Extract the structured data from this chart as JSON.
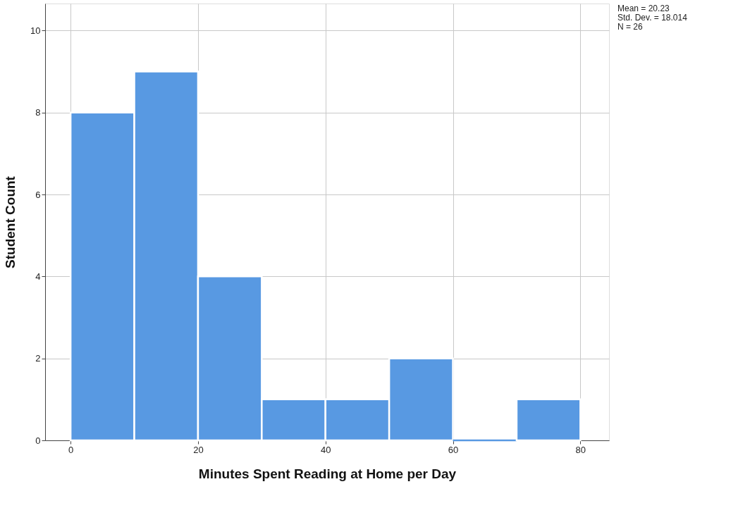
{
  "chart_data": {
    "type": "histogram",
    "xlabel": "Minutes Spent Reading at Home per Day",
    "ylabel": "Student Count",
    "bins": [
      0,
      10,
      20,
      30,
      40,
      50,
      60,
      70,
      80
    ],
    "values": [
      8,
      9,
      4,
      1,
      1,
      2,
      0,
      1
    ],
    "color": "#5899e2",
    "xlim": [
      -4,
      84.5
    ],
    "xticks": [
      0,
      20,
      40,
      60,
      80
    ],
    "ylim": [
      0,
      10.66
    ],
    "yticks": [
      0,
      2,
      4,
      6,
      8,
      10
    ],
    "grid": true,
    "annotations": [
      "Mean = 20.23",
      "Std. Dev. = 18.014",
      "N = 26"
    ]
  }
}
